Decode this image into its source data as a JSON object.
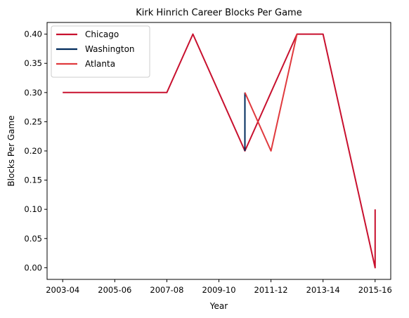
{
  "chart_data": {
    "type": "line",
    "title": "Kirk Hinrich Career Blocks Per Game",
    "xlabel": "Year",
    "ylabel": "Blocks Per Game",
    "xlim": [
      -0.6,
      12.6
    ],
    "ylim": [
      -0.02,
      0.42
    ],
    "x_ticks": [
      {
        "pos": 0,
        "label": "2003-04"
      },
      {
        "pos": 2,
        "label": "2005-06"
      },
      {
        "pos": 4,
        "label": "2007-08"
      },
      {
        "pos": 6,
        "label": "2009-10"
      },
      {
        "pos": 8,
        "label": "2011-12"
      },
      {
        "pos": 10,
        "label": "2013-14"
      },
      {
        "pos": 12,
        "label": "2015-16"
      }
    ],
    "y_ticks": [
      0.0,
      0.05,
      0.1,
      0.15,
      0.2,
      0.25,
      0.3,
      0.35,
      0.4
    ],
    "legend_position": "upper-left",
    "series": [
      {
        "name": "Chicago",
        "color": "#C8102E",
        "points": [
          [
            0,
            0.3
          ],
          [
            1,
            0.3
          ],
          [
            2,
            0.3
          ],
          [
            3,
            0.3
          ],
          [
            4,
            0.3
          ],
          [
            5,
            0.4
          ],
          [
            6,
            0.3
          ],
          [
            7,
            0.2
          ],
          [
            9,
            0.4
          ],
          [
            10,
            0.4
          ],
          [
            11,
            0.2
          ],
          [
            12,
            0.0
          ],
          [
            12,
            0.1
          ]
        ]
      },
      {
        "name": "Washington",
        "color": "#002B5C",
        "points": [
          [
            7,
            0.2
          ],
          [
            7,
            0.3
          ]
        ]
      },
      {
        "name": "Atlanta",
        "color": "#E03A3E",
        "points": [
          [
            7,
            0.3
          ],
          [
            8,
            0.2
          ],
          [
            9,
            0.4
          ]
        ]
      }
    ]
  }
}
